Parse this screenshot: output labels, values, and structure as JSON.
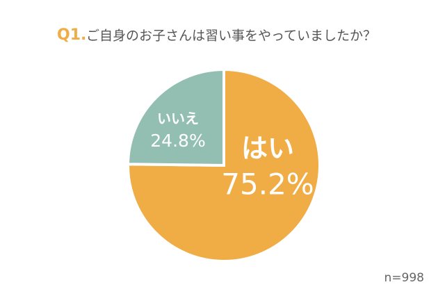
{
  "chart_data": {
    "type": "pie",
    "question_number": "Q1.",
    "title": "ご自身のお子さんは習い事をやっていましたか？",
    "categories": [
      "はい",
      "いいえ"
    ],
    "values": [
      75.2,
      24.8
    ],
    "value_labels": [
      "75.2%",
      "24.8%"
    ],
    "colors": [
      "#f0ad45",
      "#93bfb3"
    ],
    "annotation": "n=998"
  }
}
